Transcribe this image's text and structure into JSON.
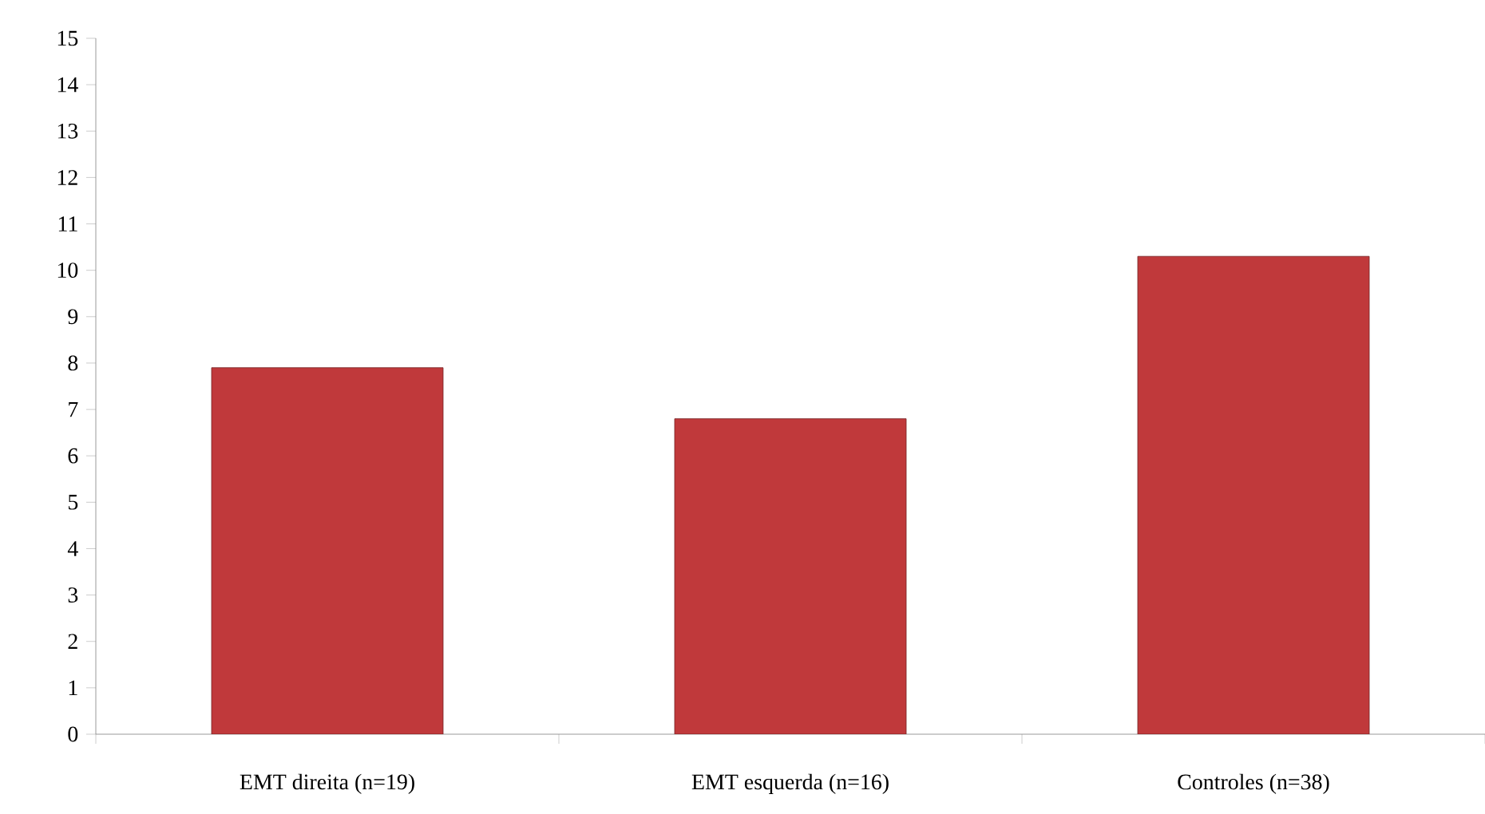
{
  "chart_data": {
    "type": "bar",
    "categories": [
      "EMT direita (n=19)",
      "EMT esquerda (n=16)",
      "Controles (n=38)"
    ],
    "values": [
      7.9,
      6.8,
      10.3
    ],
    "color": "#c0393b",
    "ylim": [
      0,
      15
    ],
    "yticks": [
      0,
      1,
      2,
      3,
      4,
      5,
      6,
      7,
      8,
      9,
      10,
      11,
      12,
      13,
      14,
      15
    ],
    "grid": false
  }
}
